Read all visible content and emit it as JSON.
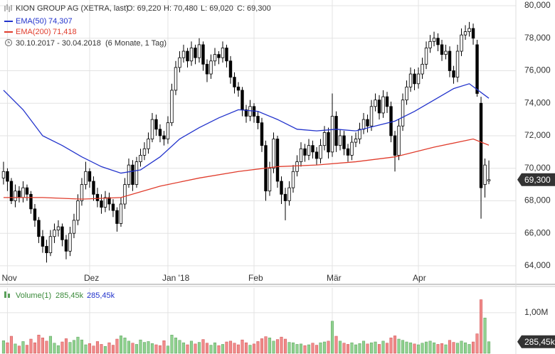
{
  "chart_data": {
    "type": "candlestick",
    "title": "KION GROUP AG (XETRA, last)",
    "ohlc_header": [
      "O: 69,220",
      "H: 70,480",
      "L: 69,020",
      "C: 69,300"
    ],
    "period": "30.10.2017 - 30.04.2018",
    "period_note": "(6 Monate, 1 Tag)",
    "up_color": "#ffffff",
    "down_color": "#000000",
    "ylim": [
      62860,
      80350
    ],
    "xlim": [
      -0.9,
      130.9
    ],
    "yticks": [
      {
        "value": 64000,
        "label": "64,000"
      },
      {
        "value": 66000,
        "label": "66,000"
      },
      {
        "value": 68000,
        "label": "68,000"
      },
      {
        "value": 70000,
        "label": "70,000"
      },
      {
        "value": 72000,
        "label": "72,000"
      },
      {
        "value": 74000,
        "label": "74,000"
      },
      {
        "value": 76000,
        "label": "76,000"
      },
      {
        "value": 78000,
        "label": "78,000"
      },
      {
        "value": 80000,
        "label": "80,000"
      }
    ],
    "xticks": [
      {
        "value": 1,
        "label": "Nov"
      },
      {
        "value": 22,
        "label": "Dez"
      },
      {
        "value": 42,
        "label": "Jan '18"
      },
      {
        "value": 64,
        "label": "Feb"
      },
      {
        "value": 84,
        "label": "Mär"
      },
      {
        "value": 106,
        "label": "Apr"
      }
    ],
    "grid": true,
    "last": {
      "value": 69300,
      "label": "69,300"
    },
    "candles": [
      [
        69400,
        70400,
        69000,
        69800
      ],
      [
        69800,
        70000,
        68600,
        69200
      ],
      [
        69200,
        69400,
        67800,
        68000
      ],
      [
        68000,
        69000,
        67600,
        68600
      ],
      [
        68600,
        68900,
        67900,
        68200
      ],
      [
        68200,
        69200,
        67900,
        68800
      ],
      [
        68800,
        69000,
        68000,
        68400
      ],
      [
        68400,
        68600,
        67200,
        67500
      ],
      [
        67500,
        67800,
        66400,
        66800
      ],
      [
        66800,
        67000,
        65400,
        65800
      ],
      [
        65800,
        66200,
        64800,
        65200
      ],
      [
        65200,
        65600,
        64200,
        64800
      ],
      [
        64800,
        66200,
        64600,
        65800
      ],
      [
        65800,
        66600,
        65400,
        66200
      ],
      [
        66200,
        66800,
        65800,
        66400
      ],
      [
        66400,
        66600,
        65200,
        65600
      ],
      [
        65600,
        65900,
        64400,
        64900
      ],
      [
        64900,
        66400,
        64600,
        66000
      ],
      [
        66000,
        67200,
        65700,
        66800
      ],
      [
        66800,
        68400,
        66500,
        68000
      ],
      [
        68000,
        69400,
        67700,
        69000
      ],
      [
        69000,
        70400,
        68700,
        69800
      ],
      [
        69800,
        70000,
        68800,
        69200
      ],
      [
        69200,
        69500,
        68000,
        68400
      ],
      [
        68400,
        68800,
        67600,
        68000
      ],
      [
        68000,
        68400,
        67200,
        67600
      ],
      [
        67600,
        68600,
        67300,
        68200
      ],
      [
        68200,
        68500,
        67400,
        67800
      ],
      [
        67800,
        68100,
        67000,
        67400
      ],
      [
        67400,
        67600,
        66100,
        66600
      ],
      [
        66600,
        68200,
        66400,
        67800
      ],
      [
        67800,
        69400,
        67500,
        69000
      ],
      [
        69000,
        70600,
        68800,
        70200
      ],
      [
        70200,
        70500,
        68600,
        69000
      ],
      [
        69000,
        70700,
        68800,
        70400
      ],
      [
        70400,
        71200,
        70100,
        70800
      ],
      [
        70800,
        71600,
        70500,
        71200
      ],
      [
        71200,
        72200,
        70900,
        71800
      ],
      [
        71800,
        73400,
        71600,
        73000
      ],
      [
        73000,
        73300,
        72000,
        72400
      ],
      [
        72400,
        72700,
        71600,
        72000
      ],
      [
        72000,
        72300,
        71400,
        71800
      ],
      [
        71800,
        73200,
        71500,
        72800
      ],
      [
        72800,
        75200,
        72600,
        74800
      ],
      [
        74800,
        76600,
        74500,
        76200
      ],
      [
        76200,
        77200,
        75900,
        76800
      ],
      [
        76800,
        77600,
        76500,
        77200
      ],
      [
        77200,
        77400,
        76200,
        76600
      ],
      [
        76600,
        77800,
        76300,
        77400
      ],
      [
        77400,
        77600,
        76400,
        76800
      ],
      [
        76800,
        78000,
        76500,
        77600
      ],
      [
        77600,
        77800,
        76000,
        76400
      ],
      [
        76400,
        76700,
        75300,
        75800
      ],
      [
        75800,
        77000,
        75500,
        76600
      ],
      [
        76600,
        77400,
        76300,
        77000
      ],
      [
        77000,
        77200,
        76400,
        76800
      ],
      [
        76800,
        77800,
        76500,
        77400
      ],
      [
        77400,
        77600,
        76200,
        76600
      ],
      [
        76600,
        76900,
        75200,
        75600
      ],
      [
        75600,
        75900,
        74600,
        75000
      ],
      [
        75000,
        75300,
        74400,
        74800
      ],
      [
        74800,
        75000,
        73200,
        73600
      ],
      [
        73600,
        73900,
        72800,
        73200
      ],
      [
        73200,
        74200,
        72900,
        73800
      ],
      [
        73800,
        74000,
        72800,
        73200
      ],
      [
        73200,
        73500,
        72400,
        72800
      ],
      [
        72800,
        73100,
        71000,
        71400
      ],
      [
        71400,
        71700,
        68000,
        68600
      ],
      [
        68600,
        70400,
        68300,
        70000
      ],
      [
        70000,
        72200,
        69700,
        71800
      ],
      [
        71800,
        72000,
        68800,
        69200
      ],
      [
        69200,
        69500,
        67800,
        68400
      ],
      [
        68400,
        68800,
        66800,
        68000
      ],
      [
        68000,
        69200,
        67700,
        68800
      ],
      [
        68800,
        70200,
        68500,
        69800
      ],
      [
        69800,
        70800,
        69500,
        70400
      ],
      [
        70400,
        71600,
        70100,
        71200
      ],
      [
        71200,
        71500,
        70400,
        70800
      ],
      [
        70800,
        71800,
        70500,
        71400
      ],
      [
        71400,
        71700,
        70600,
        71000
      ],
      [
        71000,
        71300,
        70200,
        70600
      ],
      [
        70600,
        71800,
        70300,
        71400
      ],
      [
        71400,
        72600,
        71100,
        72200
      ],
      [
        72200,
        72500,
        70600,
        71000
      ],
      [
        71000,
        74600,
        70700,
        73200
      ],
      [
        73200,
        73500,
        71000,
        71400
      ],
      [
        71400,
        72400,
        71100,
        72000
      ],
      [
        72000,
        72300,
        70800,
        71200
      ],
      [
        71200,
        71500,
        70400,
        70800
      ],
      [
        70800,
        72000,
        70500,
        71600
      ],
      [
        71600,
        72200,
        71300,
        71800
      ],
      [
        71800,
        72800,
        71500,
        72400
      ],
      [
        72400,
        73400,
        72100,
        73000
      ],
      [
        73000,
        73300,
        72200,
        72600
      ],
      [
        72600,
        74200,
        72300,
        73800
      ],
      [
        73800,
        74600,
        73500,
        74200
      ],
      [
        74200,
        74500,
        73000,
        73400
      ],
      [
        73400,
        74800,
        73100,
        74400
      ],
      [
        74400,
        74700,
        73400,
        73800
      ],
      [
        73800,
        74100,
        71600,
        72000
      ],
      [
        72000,
        72300,
        69800,
        70800
      ],
      [
        70800,
        73000,
        70500,
        72600
      ],
      [
        72600,
        74600,
        72300,
        74200
      ],
      [
        74200,
        75400,
        73900,
        75000
      ],
      [
        75000,
        76200,
        74700,
        75800
      ],
      [
        75800,
        76100,
        74800,
        75200
      ],
      [
        75200,
        76200,
        74900,
        75800
      ],
      [
        75800,
        76800,
        75500,
        76400
      ],
      [
        76400,
        77800,
        76100,
        77400
      ],
      [
        77400,
        78200,
        77100,
        77800
      ],
      [
        77800,
        78400,
        77500,
        78000
      ],
      [
        78000,
        78300,
        77200,
        77600
      ],
      [
        77600,
        77900,
        76600,
        77000
      ],
      [
        77000,
        77600,
        76700,
        77200
      ],
      [
        77200,
        77500,
        75600,
        76000
      ],
      [
        76000,
        76300,
        75200,
        75600
      ],
      [
        75600,
        77600,
        75300,
        77200
      ],
      [
        77200,
        78600,
        76900,
        78200
      ],
      [
        78200,
        78800,
        77900,
        78400
      ],
      [
        78400,
        79000,
        78100,
        78600
      ],
      [
        78600,
        78900,
        77600,
        78000
      ],
      [
        77600,
        77900,
        74400,
        74600
      ],
      [
        74000,
        74400,
        66900,
        68800
      ],
      [
        69000,
        70600,
        68200,
        70200
      ],
      [
        69220,
        70480,
        69020,
        69300
      ]
    ],
    "lines": [
      {
        "name": "EMA(50)",
        "value_label": "74,307",
        "color": "#2233cc",
        "x": [
          0,
          5,
          10,
          15,
          20,
          25,
          30,
          35,
          40,
          45,
          50,
          55,
          60,
          65,
          70,
          75,
          80,
          85,
          90,
          95,
          100,
          105,
          110,
          115,
          119,
          124
        ],
        "values": [
          74800,
          73600,
          72000,
          71400,
          70700,
          70100,
          69700,
          69900,
          70700,
          71800,
          72500,
          73100,
          73600,
          73500,
          73000,
          72400,
          72300,
          72400,
          72300,
          72600,
          72900,
          73500,
          74200,
          74900,
          75200,
          74307
        ]
      },
      {
        "name": "EMA(200)",
        "value_label": "71,418",
        "color": "#e03c2c",
        "x": [
          0,
          10,
          20,
          30,
          40,
          50,
          60,
          70,
          80,
          90,
          100,
          110,
          120,
          124
        ],
        "values": [
          68200,
          68200,
          68100,
          68200,
          68900,
          69400,
          69800,
          70100,
          70200,
          70400,
          70700,
          71300,
          71800,
          71418
        ]
      }
    ],
    "volume": {
      "name": "Volume(1)",
      "value_label": "285,45k",
      "value_label2": "285,45k",
      "ylim": [
        0,
        1610000
      ],
      "yticks": [
        {
          "value": 1000000,
          "label": "1,00M"
        }
      ],
      "last_label": {
        "value": 285450,
        "label": "285,45k"
      },
      "up_color": "#8fd18f",
      "down_color": "#f08a8a",
      "values": [
        310000,
        260000,
        420000,
        230000,
        180000,
        290000,
        200000,
        350000,
        260000,
        450000,
        380000,
        300000,
        420000,
        250000,
        190000,
        280000,
        360000,
        270000,
        320000,
        400000,
        330000,
        210000,
        240000,
        180000,
        290000,
        220000,
        170000,
        260000,
        200000,
        350000,
        430000,
        380000,
        300000,
        250000,
        220000,
        330000,
        270000,
        290000,
        240000,
        210000,
        190000,
        310000,
        180000,
        450000,
        380000,
        320000,
        260000,
        210000,
        300000,
        230000,
        270000,
        340000,
        250000,
        200000,
        260000,
        190000,
        220000,
        280000,
        300000,
        250000,
        210000,
        330000,
        260000,
        200000,
        230000,
        290000,
        360000,
        410000,
        380000,
        300000,
        340000,
        400000,
        350000,
        270000,
        260000,
        220000,
        230000,
        190000,
        210000,
        250000,
        200000,
        260000,
        280000,
        300000,
        790000,
        420000,
        300000,
        250000,
        220000,
        260000,
        210000,
        240000,
        300000,
        230000,
        260000,
        280000,
        220000,
        300000,
        250000,
        380000,
        430000,
        350000,
        320000,
        280000,
        260000,
        230000,
        210000,
        250000,
        280000,
        300000,
        260000,
        220000,
        240000,
        210000,
        320000,
        270000,
        250000,
        300000,
        260000,
        220000,
        280000,
        480000,
        1320000,
        870000,
        285450
      ]
    }
  }
}
